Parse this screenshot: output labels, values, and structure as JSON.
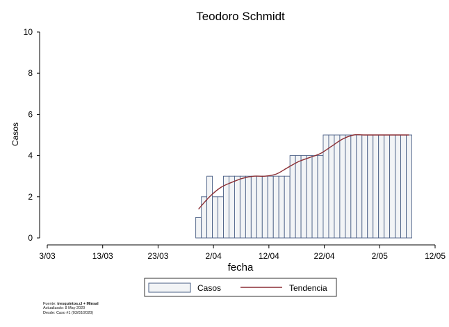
{
  "chart_data": {
    "type": "bar",
    "title": "Teodoro Schmidt",
    "xlabel": "fecha",
    "ylabel": "Casos",
    "ylim": [
      0,
      10
    ],
    "yticks": [
      0,
      2,
      4,
      6,
      8,
      10
    ],
    "xlim": [
      "2020-03-03",
      "2020-05-12"
    ],
    "xticks": [
      {
        "date": "2020-03-03",
        "label": "3/03"
      },
      {
        "date": "2020-03-13",
        "label": "13/03"
      },
      {
        "date": "2020-03-23",
        "label": "23/03"
      },
      {
        "date": "2020-04-02",
        "label": "2/04"
      },
      {
        "date": "2020-04-12",
        "label": "12/04"
      },
      {
        "date": "2020-04-22",
        "label": "22/04"
      },
      {
        "date": "2020-05-02",
        "label": "2/05"
      },
      {
        "date": "2020-05-12",
        "label": "12/05"
      }
    ],
    "grid": false,
    "legend_position": "bottom",
    "series": [
      {
        "name": "Casos",
        "kind": "bar",
        "fill": "#f2f4f6",
        "stroke": "#4a5f85",
        "x": [
          "2020-03-30",
          "2020-03-31",
          "2020-04-01",
          "2020-04-02",
          "2020-04-03",
          "2020-04-04",
          "2020-04-05",
          "2020-04-06",
          "2020-04-07",
          "2020-04-08",
          "2020-04-09",
          "2020-04-10",
          "2020-04-11",
          "2020-04-12",
          "2020-04-13",
          "2020-04-14",
          "2020-04-15",
          "2020-04-16",
          "2020-04-17",
          "2020-04-18",
          "2020-04-19",
          "2020-04-20",
          "2020-04-21",
          "2020-04-22",
          "2020-04-23",
          "2020-04-24",
          "2020-04-25",
          "2020-04-26",
          "2020-04-27",
          "2020-04-28",
          "2020-04-29",
          "2020-04-30",
          "2020-05-01",
          "2020-05-02",
          "2020-05-03",
          "2020-05-04",
          "2020-05-05",
          "2020-05-06",
          "2020-05-07"
        ],
        "values": [
          1,
          2,
          3,
          2,
          2,
          3,
          3,
          3,
          3,
          3,
          3,
          3,
          3,
          3,
          3,
          3,
          3,
          4,
          4,
          4,
          4,
          4,
          4,
          5,
          5,
          5,
          5,
          5,
          5,
          5,
          5,
          5,
          5,
          5,
          5,
          5,
          5,
          5,
          5
        ]
      },
      {
        "name": "Tendencia",
        "kind": "line",
        "color": "#8b2f35",
        "x": [
          "2020-03-30",
          "2020-04-01",
          "2020-04-03",
          "2020-04-05",
          "2020-04-07",
          "2020-04-09",
          "2020-04-11",
          "2020-04-13",
          "2020-04-15",
          "2020-04-17",
          "2020-04-19",
          "2020-04-21",
          "2020-04-23",
          "2020-04-25",
          "2020-04-27",
          "2020-04-29",
          "2020-05-01",
          "2020-05-03",
          "2020-05-05",
          "2020-05-07"
        ],
        "values": [
          1.4,
          2.0,
          2.45,
          2.7,
          2.9,
          3.0,
          3.0,
          3.1,
          3.4,
          3.7,
          3.9,
          4.1,
          4.45,
          4.8,
          5.0,
          5.0,
          5.0,
          5.0,
          5.0,
          5.0
        ]
      }
    ]
  },
  "footnote": {
    "source_label": "Fuente: ",
    "source_value": "tresquintos.cl + Minsal",
    "updated": "Actualizado: 8 May 2020",
    "since": "Desde: Caso #1  (03/03/2020)"
  }
}
